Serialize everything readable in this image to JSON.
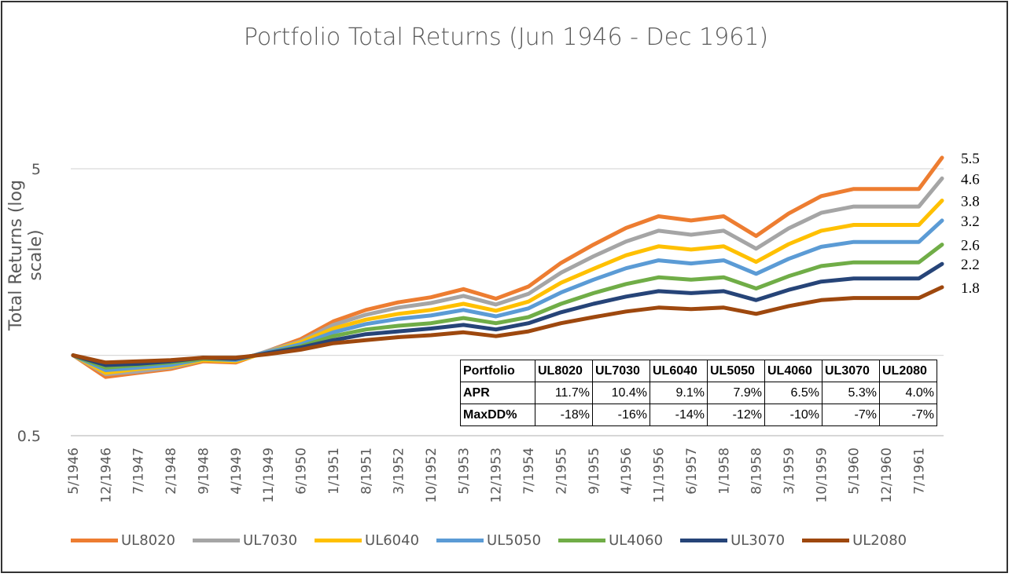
{
  "chart_data": {
    "type": "line",
    "title": "Portfolio Total Returns (Jun 1946 - Dec 1961)",
    "xlabel": "",
    "ylabel": "Total Returns (log scale)",
    "y_scale": "log",
    "ylim": [
      0.5,
      6.5
    ],
    "y_ticks": [
      {
        "value": 0.5,
        "label": "0.5"
      },
      {
        "value": 1,
        "label": ""
      },
      {
        "value": 5,
        "label": "5"
      }
    ],
    "grid": true,
    "legend_position": "bottom",
    "x_tick_labels": [
      "5/1946",
      "12/1946",
      "7/1947",
      "2/1948",
      "9/1948",
      "4/1949",
      "11/1949",
      "6/1950",
      "1/1951",
      "8/1951",
      "3/1952",
      "10/1952",
      "5/1953",
      "12/1953",
      "7/1954",
      "2/1955",
      "9/1955",
      "4/1956",
      "11/1956",
      "6/1957",
      "1/1958",
      "8/1958",
      "3/1959",
      "10/1959",
      "5/1960",
      "12/1960",
      "7/1961"
    ],
    "x_months": [
      0,
      7,
      14,
      21,
      28,
      35,
      42,
      49,
      56,
      63,
      70,
      77,
      84,
      91,
      98,
      105,
      112,
      119,
      126,
      133,
      140,
      147,
      154,
      161,
      168,
      175,
      182,
      187
    ],
    "x_max_month": 187,
    "series": [
      {
        "name": "UL8020",
        "color": "#ED7D31",
        "end_label": "5.5",
        "values": [
          1.0,
          0.83,
          0.86,
          0.89,
          0.95,
          0.94,
          1.04,
          1.15,
          1.34,
          1.48,
          1.58,
          1.65,
          1.77,
          1.63,
          1.81,
          2.22,
          2.6,
          3.0,
          3.32,
          3.2,
          3.32,
          2.8,
          3.4,
          3.95,
          4.2,
          4.2,
          4.2,
          5.5
        ]
      },
      {
        "name": "UL7030",
        "color": "#A5A5A5",
        "end_label": "4.6",
        "values": [
          1.0,
          0.85,
          0.87,
          0.9,
          0.96,
          0.95,
          1.04,
          1.13,
          1.3,
          1.42,
          1.51,
          1.57,
          1.67,
          1.55,
          1.7,
          2.04,
          2.35,
          2.67,
          2.93,
          2.83,
          2.93,
          2.51,
          2.99,
          3.42,
          3.61,
          3.61,
          3.61,
          4.6
        ]
      },
      {
        "name": "UL6040",
        "color": "#FFC000",
        "end_label": "3.8",
        "values": [
          1.0,
          0.86,
          0.89,
          0.91,
          0.96,
          0.95,
          1.03,
          1.12,
          1.26,
          1.36,
          1.43,
          1.48,
          1.56,
          1.47,
          1.59,
          1.87,
          2.11,
          2.37,
          2.56,
          2.49,
          2.56,
          2.24,
          2.61,
          2.93,
          3.08,
          3.08,
          3.08,
          3.8
        ]
      },
      {
        "name": "UL5050",
        "color": "#5B9BD5",
        "end_label": "3.2",
        "values": [
          1.0,
          0.88,
          0.9,
          0.92,
          0.97,
          0.96,
          1.03,
          1.1,
          1.22,
          1.31,
          1.37,
          1.41,
          1.48,
          1.4,
          1.5,
          1.72,
          1.92,
          2.12,
          2.27,
          2.21,
          2.27,
          2.02,
          2.3,
          2.55,
          2.66,
          2.66,
          2.66,
          3.2
        ]
      },
      {
        "name": "UL4060",
        "color": "#70AD47",
        "end_label": "2.6",
        "values": [
          1.0,
          0.9,
          0.92,
          0.94,
          0.97,
          0.97,
          1.02,
          1.08,
          1.18,
          1.25,
          1.29,
          1.32,
          1.38,
          1.32,
          1.39,
          1.56,
          1.71,
          1.85,
          1.96,
          1.92,
          1.96,
          1.78,
          1.98,
          2.16,
          2.23,
          2.23,
          2.23,
          2.6
        ]
      },
      {
        "name": "UL3070",
        "color": "#264478",
        "end_label": "2.2",
        "values": [
          1.0,
          0.92,
          0.93,
          0.95,
          0.98,
          0.97,
          1.02,
          1.07,
          1.14,
          1.2,
          1.23,
          1.26,
          1.3,
          1.25,
          1.32,
          1.45,
          1.56,
          1.66,
          1.74,
          1.71,
          1.74,
          1.61,
          1.76,
          1.89,
          1.94,
          1.94,
          1.94,
          2.2
        ]
      },
      {
        "name": "UL2080",
        "color": "#9E480E",
        "end_label": "1.8",
        "values": [
          1.0,
          0.94,
          0.95,
          0.96,
          0.98,
          0.98,
          1.01,
          1.05,
          1.11,
          1.14,
          1.17,
          1.19,
          1.22,
          1.18,
          1.23,
          1.32,
          1.39,
          1.46,
          1.51,
          1.49,
          1.51,
          1.43,
          1.53,
          1.61,
          1.64,
          1.64,
          1.64,
          1.8
        ]
      }
    ],
    "table": {
      "header": [
        "Portfolio",
        "UL8020",
        "UL7030",
        "UL6040",
        "UL5050",
        "UL4060",
        "UL3070",
        "UL2080"
      ],
      "rows": [
        [
          "APR",
          "11.7%",
          "10.4%",
          "9.1%",
          "7.9%",
          "6.5%",
          "5.3%",
          "4.0%"
        ],
        [
          "MaxDD%",
          "-18%",
          "-16%",
          "-14%",
          "-12%",
          "-10%",
          "-7%",
          "-7%"
        ]
      ]
    }
  }
}
